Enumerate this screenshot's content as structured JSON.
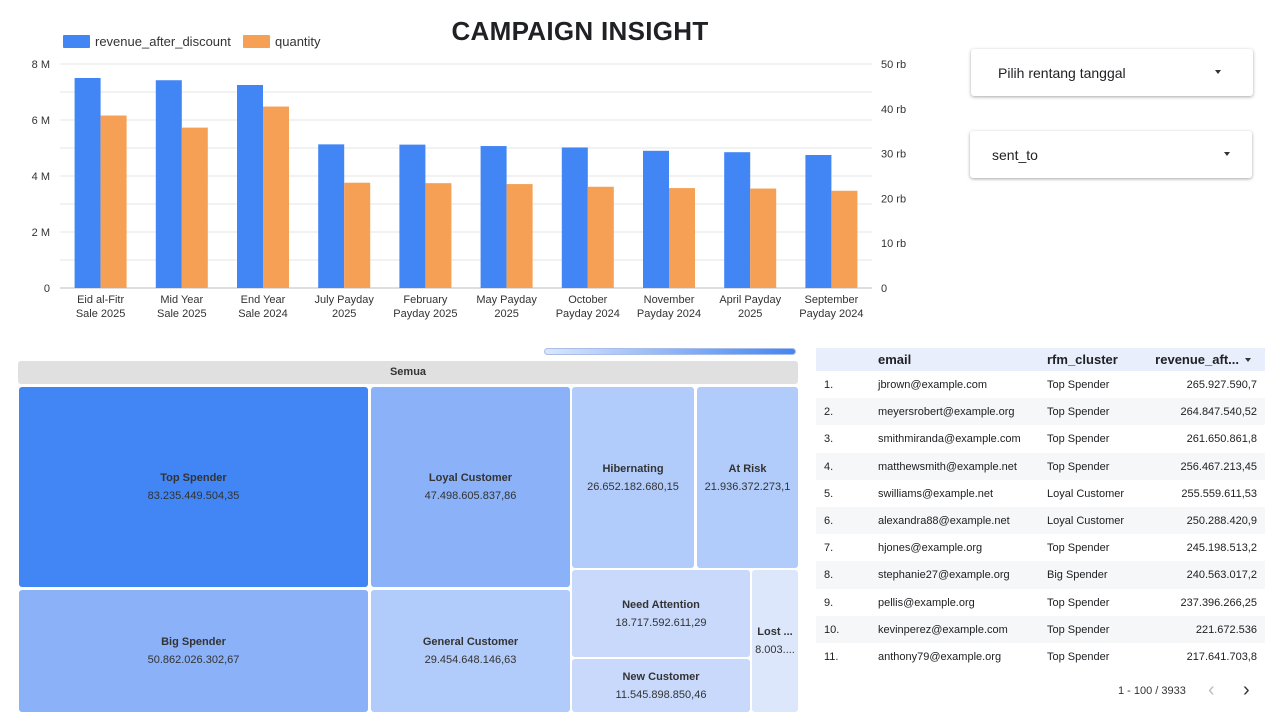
{
  "title": "CAMPAIGN INSIGHT",
  "colors": {
    "revenue": "#4285f4",
    "quantity": "#f5a054"
  },
  "chart_data": {
    "type": "bar",
    "categories": [
      [
        "Eid al-Fitr",
        "Sale 2025"
      ],
      [
        "Mid Year",
        "Sale 2025"
      ],
      [
        "End Year",
        "Sale 2024"
      ],
      [
        "July Payday",
        "2025"
      ],
      [
        "February",
        "Payday 2025"
      ],
      [
        "May Payday",
        "2025"
      ],
      [
        "October",
        "Payday 2024"
      ],
      [
        "November",
        "Payday 2024"
      ],
      [
        "April Payday",
        "2025"
      ],
      [
        "September",
        "Payday 2024"
      ]
    ],
    "series": [
      {
        "name": "revenue_after_discount",
        "axis": "left",
        "values": [
          7.5,
          7.42,
          7.25,
          5.13,
          5.12,
          5.07,
          5.02,
          4.9,
          4.85,
          4.75
        ]
      },
      {
        "name": "quantity",
        "axis": "right",
        "values": [
          38.5,
          35.8,
          40.5,
          23.5,
          23.4,
          23.2,
          22.6,
          22.3,
          22.2,
          21.7
        ]
      }
    ],
    "y_left": {
      "min": 0,
      "max": 8,
      "ticks": [
        "0",
        "2 M",
        "4 M",
        "6 M",
        "8 M"
      ]
    },
    "y_right": {
      "min": 0,
      "max": 50,
      "ticks": [
        "0",
        "10 rb",
        "20 rb",
        "30 rb",
        "40 rb",
        "50 rb"
      ]
    },
    "grid": true,
    "legend": "top-left"
  },
  "controls": {
    "date_range_label": "Pilih rentang tanggal",
    "sent_to_label": "sent_to"
  },
  "treemap": {
    "header": "Semua",
    "cells": [
      {
        "name": "Top Spender",
        "value": "83.235.449.504,35"
      },
      {
        "name": "Big Spender",
        "value": "50.862.026.302,67"
      },
      {
        "name": "Loyal Customer",
        "value": "47.498.605.837,86"
      },
      {
        "name": "General Customer",
        "value": "29.454.648.146,63"
      },
      {
        "name": "Hibernating",
        "value": "26.652.182.680,15"
      },
      {
        "name": "At Risk",
        "value": "21.936.372.273,1"
      },
      {
        "name": "Need Attention",
        "value": "18.717.592.611,29"
      },
      {
        "name": "New Customer",
        "value": "11.545.898.850,46"
      },
      {
        "name": "Lost ...",
        "value": "8.003...."
      }
    ]
  },
  "table": {
    "columns": [
      "email",
      "rfm_cluster",
      "revenue_aft..."
    ],
    "rows": [
      {
        "idx": "1.",
        "email": "jbrown@example.com",
        "cluster": "Top Spender",
        "revenue": "265.927.590,7"
      },
      {
        "idx": "2.",
        "email": "meyersrobert@example.org",
        "cluster": "Top Spender",
        "revenue": "264.847.540,52"
      },
      {
        "idx": "3.",
        "email": "smithmiranda@example.com",
        "cluster": "Top Spender",
        "revenue": "261.650.861,8"
      },
      {
        "idx": "4.",
        "email": "matthewsmith@example.net",
        "cluster": "Top Spender",
        "revenue": "256.467.213,45"
      },
      {
        "idx": "5.",
        "email": "swilliams@example.net",
        "cluster": "Loyal Customer",
        "revenue": "255.559.611,53"
      },
      {
        "idx": "6.",
        "email": "alexandra88@example.net",
        "cluster": "Loyal Customer",
        "revenue": "250.288.420,9"
      },
      {
        "idx": "7.",
        "email": "hjones@example.org",
        "cluster": "Top Spender",
        "revenue": "245.198.513,2"
      },
      {
        "idx": "8.",
        "email": "stephanie27@example.org",
        "cluster": "Big Spender",
        "revenue": "240.563.017,2"
      },
      {
        "idx": "9.",
        "email": "pellis@example.org",
        "cluster": "Top Spender",
        "revenue": "237.396.266,25"
      },
      {
        "idx": "10.",
        "email": "kevinperez@example.com",
        "cluster": "Top Spender",
        "revenue": "221.672.536"
      },
      {
        "idx": "11.",
        "email": "anthony79@example.org",
        "cluster": "Top Spender",
        "revenue": "217.641.703,8"
      }
    ],
    "pagination": "1 - 100 / 3933"
  }
}
